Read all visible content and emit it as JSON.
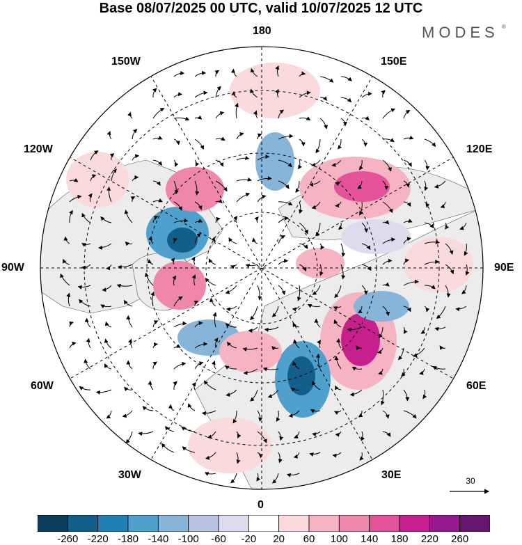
{
  "title": "Base 08/07/2025 00 UTC, valid 10/07/2025 12 UTC",
  "logo": "MODES",
  "logo_mark": "®",
  "longitude_labels": {
    "top": "180",
    "bottom": "0",
    "left": "90W",
    "right": "90E",
    "w150": "150W",
    "e150": "150E",
    "w120": "120W",
    "e120": "120E",
    "w60": "60W",
    "e60": "60E",
    "w30": "30W",
    "e30": "30E"
  },
  "vector_scale_label": "30",
  "colorbar": {
    "ticks": [
      "-260",
      "-220",
      "-180",
      "-140",
      "-100",
      "-60",
      "-20",
      "20",
      "60",
      "100",
      "140",
      "180",
      "220",
      "260"
    ],
    "colors": [
      "#0b3d5c",
      "#125f8c",
      "#1f80b6",
      "#4fa0cc",
      "#86b5d9",
      "#b7c2e2",
      "#dcdcee",
      "#ffffff",
      "#fadada",
      "#f6b4c2",
      "#ef86ac",
      "#e4539a",
      "#c81f8e",
      "#98198f",
      "#65176f"
    ]
  },
  "land_color": "#ececec",
  "ocean_color": "#ffffff"
}
